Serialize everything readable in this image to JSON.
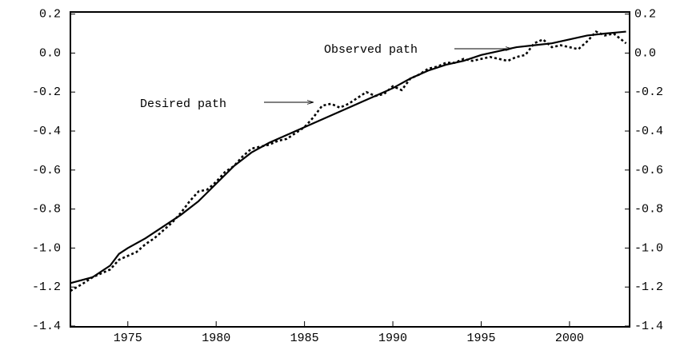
{
  "chart_data": {
    "type": "line",
    "annotations": [
      "Desired path",
      "Observed path"
    ],
    "xlim": [
      1971.75,
      2003.4
    ],
    "xticks": [
      1975,
      1980,
      1985,
      1990,
      1995,
      2000
    ],
    "ylim": [
      -1.4,
      0.2
    ],
    "yticks": [
      {
        "value": -1.4,
        "label": "-1.4"
      },
      -1.2,
      {
        "value": -1,
        "label": "-1.0"
      },
      -0.8,
      -0.6,
      -0.4,
      -0.2,
      {
        "value": 0,
        "label": "0.0"
      },
      0.2
    ],
    "series": [
      {
        "color": "#000000",
        "style": "solid",
        "x": [
          1971.75,
          1973,
          1974,
          1974.5,
          1975,
          1976,
          1977,
          1978,
          1979,
          1980,
          1981,
          1982,
          1983,
          1984,
          1985,
          1986,
          1987,
          1988,
          1989,
          1990,
          1991,
          1992,
          1993,
          1994,
          1995,
          1996,
          1997,
          1998,
          1999,
          2000,
          2001,
          2002,
          2003.2
        ],
        "values": [
          -1.18,
          -1.15,
          -1.09,
          -1.03,
          -1.0,
          -0.95,
          -0.89,
          -0.83,
          -0.76,
          -0.67,
          -0.58,
          -0.51,
          -0.46,
          -0.42,
          -0.38,
          -0.34,
          -0.3,
          -0.26,
          -0.22,
          -0.18,
          -0.13,
          -0.09,
          -0.06,
          -0.04,
          -0.01,
          0.01,
          0.03,
          0.04,
          0.05,
          0.07,
          0.09,
          0.1,
          0.11
        ]
      },
      {
        "color": "#000000",
        "style": "dotted",
        "x": [
          1971.75,
          1972.5,
          1973,
          1973.5,
          1974,
          1974.5,
          1975,
          1975.5,
          1976,
          1976.5,
          1977,
          1977.5,
          1978,
          1978.5,
          1979,
          1979.5,
          1980,
          1980.5,
          1981,
          1981.5,
          1982,
          1982.5,
          1983,
          1983.5,
          1984,
          1984.5,
          1985,
          1985.5,
          1986,
          1986.5,
          1987,
          1987.5,
          1988,
          1988.5,
          1989,
          1989.5,
          1990,
          1990.5,
          1991,
          1991.5,
          1992,
          1992.5,
          1993,
          1993.5,
          1994,
          1994.5,
          1995,
          1995.5,
          1996,
          1996.5,
          1997,
          1997.5,
          1998,
          1998.5,
          1999,
          1999.5,
          2000,
          2000.5,
          2001,
          2001.5,
          2002,
          2002.5,
          2003.2
        ],
        "values": [
          -1.22,
          -1.18,
          -1.15,
          -1.13,
          -1.11,
          -1.06,
          -1.04,
          -1.02,
          -0.98,
          -0.95,
          -0.91,
          -0.87,
          -0.82,
          -0.76,
          -0.71,
          -0.7,
          -0.66,
          -0.61,
          -0.58,
          -0.53,
          -0.49,
          -0.48,
          -0.47,
          -0.45,
          -0.44,
          -0.41,
          -0.38,
          -0.33,
          -0.27,
          -0.26,
          -0.28,
          -0.26,
          -0.23,
          -0.2,
          -0.22,
          -0.21,
          -0.17,
          -0.19,
          -0.13,
          -0.11,
          -0.08,
          -0.07,
          -0.05,
          -0.05,
          -0.03,
          -0.04,
          -0.03,
          -0.02,
          -0.03,
          -0.04,
          -0.02,
          -0.01,
          0.05,
          0.07,
          0.03,
          0.04,
          0.03,
          0.02,
          0.06,
          0.11,
          0.09,
          0.1,
          0.05
        ]
      }
    ]
  }
}
